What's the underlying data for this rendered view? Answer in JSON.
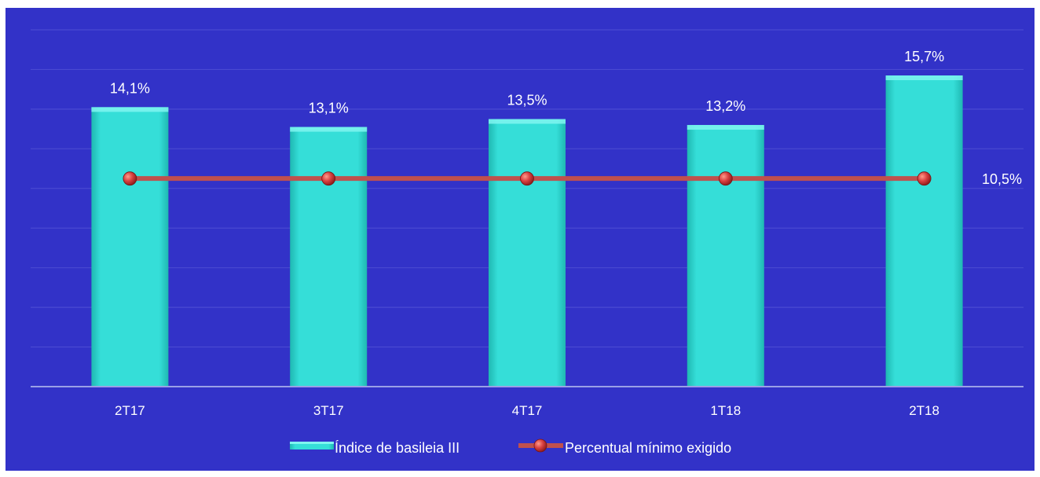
{
  "chart_data": {
    "type": "bar",
    "categories": [
      "2T17",
      "3T17",
      "4T17",
      "1T18",
      "2T18"
    ],
    "series": [
      {
        "name": "Índice de basileia III",
        "type": "bar",
        "values": [
          14.1,
          13.1,
          13.5,
          13.2,
          15.7
        ],
        "labels": [
          "14,1%",
          "13,1%",
          "13,5%",
          "13,2%",
          "15,7%"
        ],
        "color": "#35ded8"
      },
      {
        "name": "Percentual mínimo exigido",
        "type": "line",
        "values": [
          10.5,
          10.5,
          10.5,
          10.5,
          10.5
        ],
        "end_label": "10,5%",
        "color": "#c0504d",
        "marker_color": "#d84040"
      }
    ],
    "ylim": [
      0,
      18
    ],
    "grid": true,
    "legend_position": "bottom",
    "colors": {
      "background": "#3232c8",
      "gridline": "#4a4ad2",
      "axis": "#9aa0e6",
      "text": "#ffffff"
    }
  }
}
